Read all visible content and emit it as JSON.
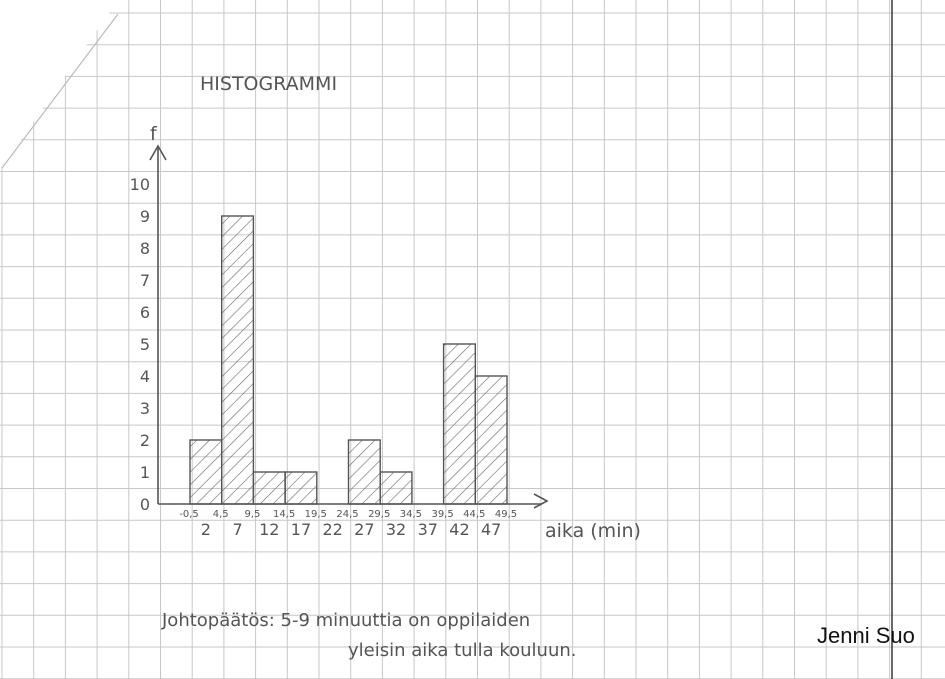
{
  "chart_data": {
    "type": "bar",
    "title": "HISTOGRAMMI",
    "ylabel": "f",
    "xlabel": "aika (min)",
    "yticks": [
      0,
      1,
      2,
      3,
      4,
      5,
      6,
      7,
      8,
      9,
      10
    ],
    "ylim": [
      0,
      10
    ],
    "bin_edges": [
      "-0,5",
      "4,5",
      "9,5",
      "14,5",
      "19,5",
      "24,5",
      "29,5",
      "34,5",
      "39,5",
      "44,5",
      "49,5"
    ],
    "categories": [
      "2",
      "7",
      "12",
      "17",
      "22",
      "27",
      "32",
      "37",
      "42",
      "47"
    ],
    "values": [
      2,
      9,
      1,
      1,
      0,
      2,
      1,
      0,
      5,
      4
    ],
    "grid": true
  },
  "conclusion": {
    "line1": "Johtopäätös: 5-9 minuuttia on oppilaiden",
    "line2": "yleisin aika tulla kouluun."
  },
  "author": "Jenni Suo",
  "colors": {
    "grid": "#c7c7c7",
    "ink": "#555555",
    "margin_line": "#444444"
  }
}
